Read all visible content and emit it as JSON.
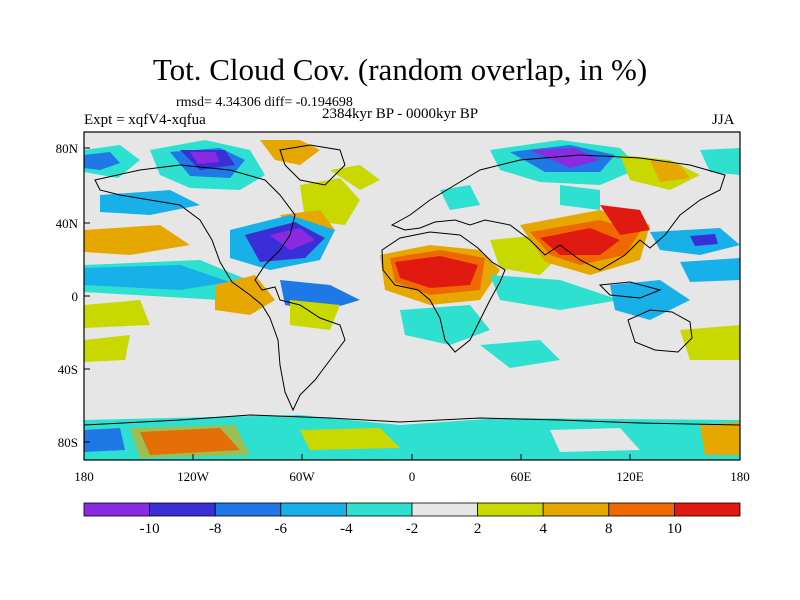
{
  "title": "Tot. Cloud Cov. (random overlap, in %)",
  "stats": "rmsd= 4.34306 diff= -0.194698",
  "experiment": "Expt = xqfV4-xqfua",
  "period": "2384kyr BP - 0000kyr BP",
  "season": "JJA",
  "lat_ticks": [
    "80N",
    "40N",
    "0",
    "40S",
    "80S"
  ],
  "lon_ticks": [
    "180",
    "120W",
    "60W",
    "0",
    "60E",
    "120E",
    "180"
  ],
  "colorbar": {
    "labels": [
      "-10",
      "-8",
      "-6",
      "-4",
      "-2",
      "2",
      "4",
      "8",
      "10"
    ],
    "colors": [
      "#8a2be2",
      "#3a2fd6",
      "#1e78e6",
      "#18b0e8",
      "#2ee0d0",
      "#e6e6e6",
      "#c8d800",
      "#e6a800",
      "#ee6a00",
      "#e01a10"
    ]
  }
}
